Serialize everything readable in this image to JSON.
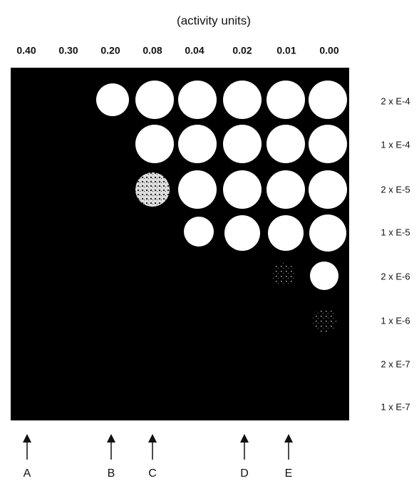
{
  "header": {
    "title": "(activity units)"
  },
  "columns": [
    "0.40",
    "0.30",
    "0.20",
    "0.08",
    "0.04",
    "0.02",
    "0.01",
    "0.00"
  ],
  "rows": [
    "2 x E-4",
    "1 x E-4",
    "2 x E-5",
    "1 x E-5",
    "2 x E-6",
    "1 x E-6",
    "2 x E-7",
    "1 x E-7"
  ],
  "arrows": [
    "A",
    "B",
    "C",
    "D",
    "E"
  ]
}
